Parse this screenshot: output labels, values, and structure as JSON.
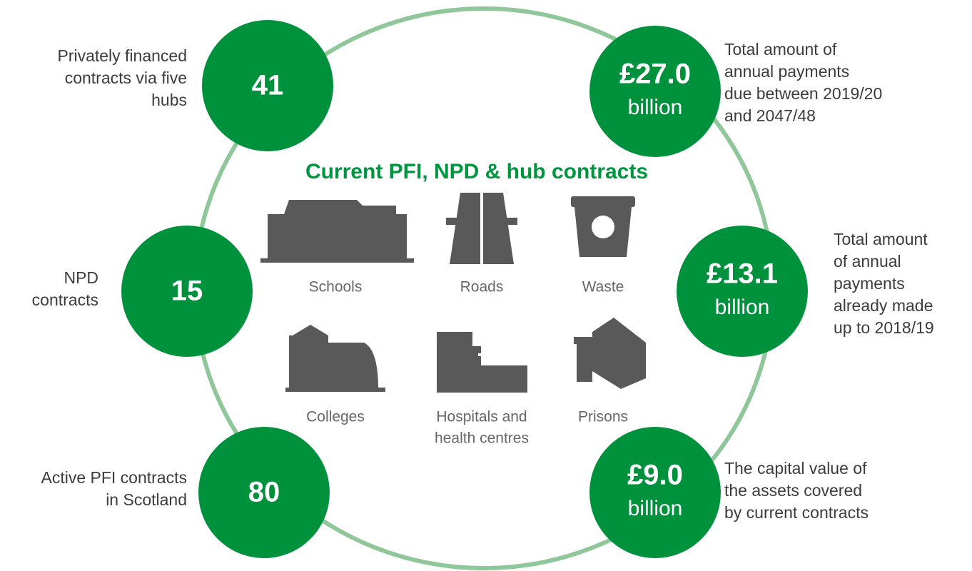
{
  "title": "Current PFI, NPD & hub contracts",
  "stats": [
    {
      "value": "41",
      "description": [
        "Privately financed",
        "contracts via five",
        "hubs"
      ]
    },
    {
      "value": "£27.0",
      "unit": "billion",
      "description": [
        "Total amount of",
        "annual payments",
        "due between 2019/20",
        "and 2047/48"
      ]
    },
    {
      "value": "15",
      "description": [
        "NPD",
        "contracts"
      ]
    },
    {
      "value": "£13.1",
      "unit": "billion",
      "description": [
        "Total amount",
        "of annual",
        "payments",
        "already made",
        "up to 2018/19"
      ]
    },
    {
      "value": "80",
      "description": [
        "Active PFI contracts",
        "in Scotland"
      ]
    },
    {
      "value": "£9.0",
      "unit": "billion",
      "description": [
        "The capital value of",
        "the assets covered",
        "by current contracts"
      ]
    }
  ],
  "sectors": [
    {
      "label": [
        "Schools"
      ]
    },
    {
      "label": [
        "Roads"
      ]
    },
    {
      "label": [
        "Waste"
      ]
    },
    {
      "label": [
        "Colleges"
      ]
    },
    {
      "label": [
        "Hospitals and",
        "health centres"
      ]
    },
    {
      "label": [
        "Prisons"
      ]
    }
  ]
}
